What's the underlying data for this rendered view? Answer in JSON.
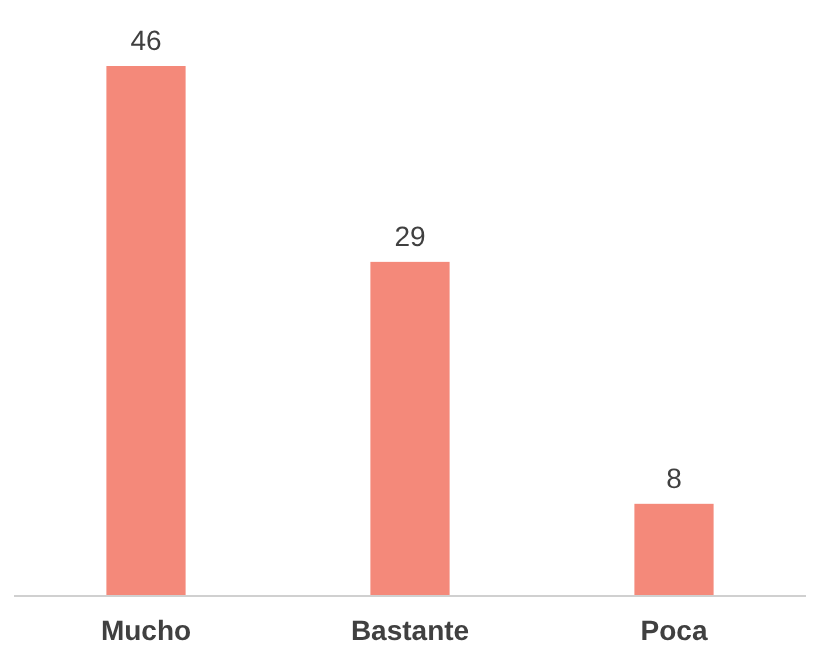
{
  "chart_data": {
    "type": "bar",
    "categories": [
      "Mucho",
      "Bastante",
      "Poca"
    ],
    "values": [
      46,
      29,
      8
    ],
    "color": "#f4897a",
    "data_labels": true
  }
}
